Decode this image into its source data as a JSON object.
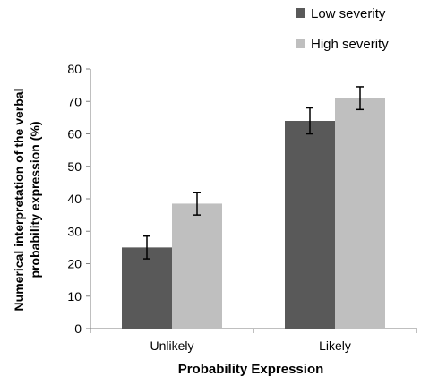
{
  "chart_data": {
    "type": "bar",
    "categories": [
      "Unlikely",
      "Likely"
    ],
    "series": [
      {
        "name": "Low severity",
        "values": [
          25,
          64
        ],
        "error": [
          3.5,
          4
        ],
        "color": "#595959"
      },
      {
        "name": "High severity",
        "values": [
          38.5,
          71
        ],
        "error": [
          3.5,
          3.5
        ],
        "color": "#bfbfbf"
      }
    ],
    "xlabel": "Probability Expression",
    "ylabel": [
      "Numerical interpretation of the verbal",
      "probability expression (%)"
    ],
    "ylim": [
      0,
      80
    ],
    "yticks": [
      0,
      10,
      20,
      30,
      40,
      50,
      60,
      70,
      80
    ],
    "grid": false,
    "legend_position": "top-right"
  }
}
